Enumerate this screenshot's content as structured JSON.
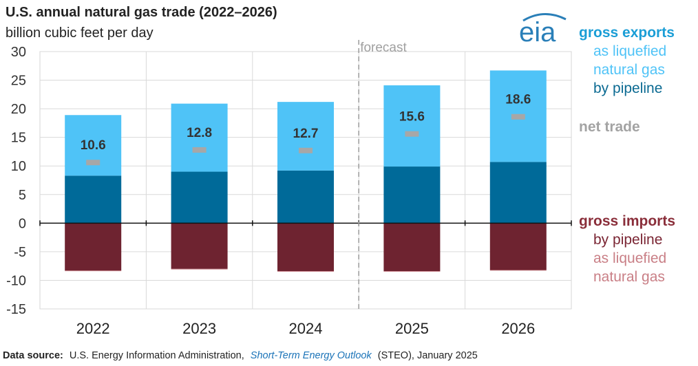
{
  "colors": {
    "pipeline_exports": "#006a99",
    "lng_exports": "#4fc3f7",
    "pipeline_imports": "#6e2330",
    "lng_imports": "#c97f86",
    "net_trade": "#a7a7a7",
    "exports_heading": "#1b9ed6",
    "imports_heading": "#8a2e3a",
    "lng_export_text": "#4fc3f7",
    "pipeline_export_text": "#0b6a92",
    "pipeline_import_text": "#7a2533",
    "lng_import_text": "#c97f86",
    "net_trade_text": "#a3a3a3"
  },
  "logo": {
    "text": "eia"
  },
  "source": {
    "label": "Data source:",
    "text1": "U.S. Energy Information Administration,",
    "link": "Short-Term Energy Outlook",
    "text2": "(STEO), January 2025"
  },
  "chart_data": {
    "type": "bar",
    "stacked": true,
    "title": "U.S. annual natural gas trade (2022–2026)",
    "subtitle": "billion cubic feet per day",
    "categories": [
      "2022",
      "2023",
      "2024",
      "2025",
      "2026"
    ],
    "ylim": [
      -15,
      30
    ],
    "yticks": [
      30,
      25,
      20,
      15,
      10,
      5,
      0,
      -5,
      -10,
      -15
    ],
    "grid": true,
    "forecast_label": "forecast",
    "forecast_starts_at": "2025",
    "series": [
      {
        "key": "pipeline_exports",
        "values": [
          8.3,
          9.0,
          9.2,
          9.9,
          10.7
        ]
      },
      {
        "key": "lng_exports",
        "values": [
          10.6,
          11.9,
          12.0,
          14.2,
          16.0
        ]
      },
      {
        "key": "pipeline_imports",
        "values": [
          -8.3,
          -8.0,
          -8.4,
          -8.4,
          -8.2
        ]
      },
      {
        "key": "lng_imports",
        "values": [
          -0.1,
          -0.1,
          -0.1,
          -0.1,
          -0.1
        ]
      }
    ],
    "net_trade": {
      "values": [
        10.6,
        12.8,
        12.7,
        15.6,
        18.6
      ],
      "labels": [
        "10.6",
        "12.8",
        "12.7",
        "15.6",
        "18.6"
      ]
    },
    "legend": {
      "placement": "right",
      "exports_heading": "gross exports",
      "lng_exports_line1": "as liquefied",
      "lng_exports_line2": "natural gas",
      "pipeline_exports": "by pipeline",
      "net_trade": "net trade",
      "imports_heading": "gross imports",
      "pipeline_imports": "by pipeline",
      "lng_imports_line1": "as liquefied",
      "lng_imports_line2": "natural gas"
    }
  }
}
